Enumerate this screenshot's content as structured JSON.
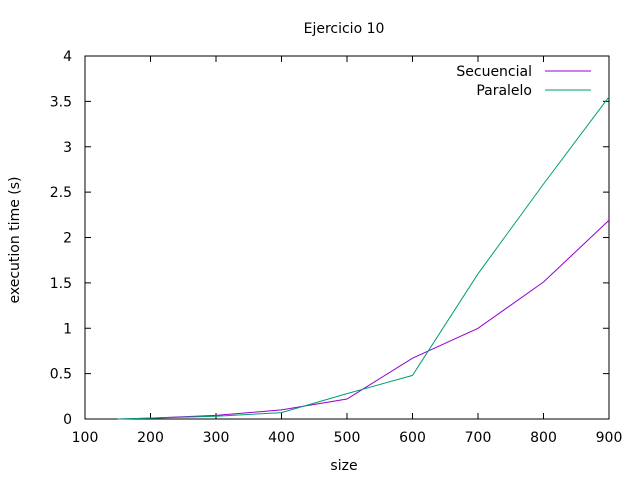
{
  "chart_data": {
    "type": "line",
    "title": "Ejercicio 10",
    "xlabel": "size",
    "ylabel": "execution time (s)",
    "xlim": [
      100,
      900
    ],
    "ylim": [
      0,
      4
    ],
    "xticks": [
      100,
      200,
      300,
      400,
      500,
      600,
      700,
      800,
      900
    ],
    "yticks": [
      0,
      0.5,
      1,
      1.5,
      2,
      2.5,
      3,
      3.5,
      4
    ],
    "ytick_labels": [
      "0",
      "0.5",
      "1",
      "1.5",
      "2",
      "2.5",
      "3",
      "3.5",
      "4"
    ],
    "grid": false,
    "legend_position": "top-right",
    "series": [
      {
        "name": "Secuencial",
        "color": "#9400d3",
        "points": [
          [
            150,
            0.0
          ],
          [
            200,
            0.01
          ],
          [
            300,
            0.04
          ],
          [
            400,
            0.1
          ],
          [
            500,
            0.22
          ],
          [
            600,
            0.67
          ],
          [
            700,
            1.0
          ],
          [
            800,
            1.51
          ],
          [
            900,
            2.19
          ]
        ]
      },
      {
        "name": "Paralelo",
        "color": "#009e73",
        "points": [
          [
            150,
            0.0
          ],
          [
            200,
            0.01
          ],
          [
            300,
            0.03
          ],
          [
            400,
            0.07
          ],
          [
            500,
            0.28
          ],
          [
            600,
            0.48
          ],
          [
            700,
            1.6
          ],
          [
            800,
            2.59
          ],
          [
            900,
            3.55
          ]
        ]
      }
    ]
  }
}
